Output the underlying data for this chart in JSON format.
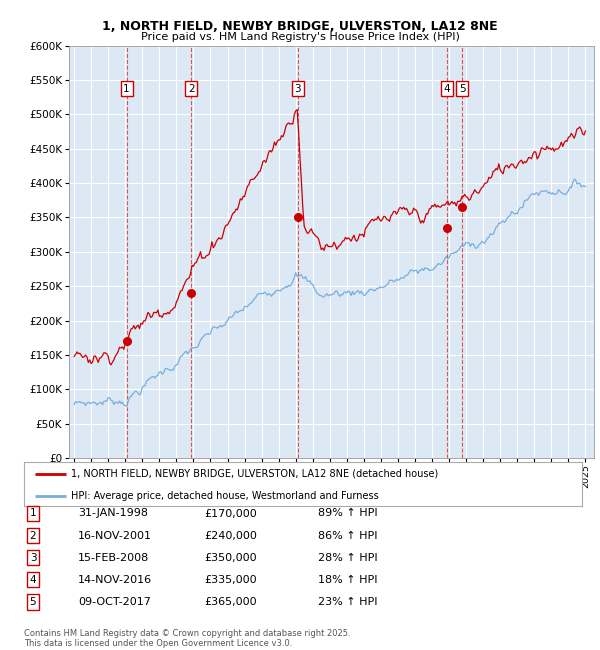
{
  "title_line1": "1, NORTH FIELD, NEWBY BRIDGE, ULVERSTON, LA12 8NE",
  "title_line2": "Price paid vs. HM Land Registry's House Price Index (HPI)",
  "legend_red": "1, NORTH FIELD, NEWBY BRIDGE, ULVERSTON, LA12 8NE (detached house)",
  "legend_blue": "HPI: Average price, detached house, Westmorland and Furness",
  "footer": "Contains HM Land Registry data © Crown copyright and database right 2025.\nThis data is licensed under the Open Government Licence v3.0.",
  "sales": [
    {
      "num": 1,
      "date": "31-JAN-1998",
      "year": 1998.08,
      "price": 170000,
      "hpi_pct": "89% ↑ HPI"
    },
    {
      "num": 2,
      "date": "16-NOV-2001",
      "year": 2001.88,
      "price": 240000,
      "hpi_pct": "86% ↑ HPI"
    },
    {
      "num": 3,
      "date": "15-FEB-2008",
      "year": 2008.12,
      "price": 350000,
      "hpi_pct": "28% ↑ HPI"
    },
    {
      "num": 4,
      "date": "14-NOV-2016",
      "year": 2016.88,
      "price": 335000,
      "hpi_pct": "18% ↑ HPI"
    },
    {
      "num": 5,
      "date": "09-OCT-2017",
      "year": 2017.77,
      "price": 365000,
      "hpi_pct": "23% ↑ HPI"
    }
  ],
  "ylim_max": 600000,
  "xlim_start": 1994.7,
  "xlim_end": 2025.5,
  "yticks": [
    0,
    50000,
    100000,
    150000,
    200000,
    250000,
    300000,
    350000,
    400000,
    450000,
    500000,
    550000,
    600000
  ],
  "bg_color": "#dce9f5",
  "red_color": "#cc0000",
  "blue_color": "#7aaddb",
  "grid_color": "#ffffff",
  "dashed_line_color": "#dd4444"
}
